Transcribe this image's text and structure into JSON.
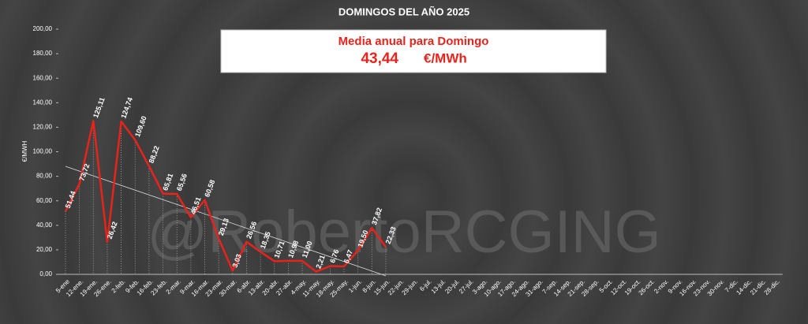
{
  "chart_data": {
    "type": "line",
    "title": "DOMINGOS DEL AÑO 2025",
    "y_label": "€/MWH",
    "watermark": "@RobertoRCGING",
    "annual_mean": {
      "label": "Media anual para Domingo",
      "value": 43.44,
      "value_label": "43,44",
      "unit": "€/MWh"
    },
    "categories": [
      "5-ene",
      "12-ene.",
      "19-ene.",
      "26-ene.",
      "2-feb.",
      "9-feb.",
      "16-feb.",
      "23-feb.",
      "2-mar.",
      "9-mar.",
      "16-mar.",
      "23-mar.",
      "30-mar.",
      "6-abr.",
      "13-abr.",
      "20-abr.",
      "27-abr.",
      "4-may.",
      "11-may.",
      "18-may.",
      "25-may.",
      "1-jun.",
      "8-jun.",
      "15-jun.",
      "22-jun.",
      "29-jun.",
      "6-jul.",
      "13-jul.",
      "20-jul.",
      "27-jul.",
      "3-ago.",
      "10-ago.",
      "17-ago.",
      "24-ago.",
      "31-ago.",
      "7-sep.",
      "14-sep.",
      "21-sep.",
      "28-sep.",
      "5-oct.",
      "12-oct.",
      "19-oct.",
      "26-oct.",
      "2-nov.",
      "9-nov.",
      "16-nov.",
      "23-nov.",
      "30-nov.",
      "7-dic.",
      "14-dic.",
      "21-dic.",
      "28-dic."
    ],
    "series": [
      {
        "color": "#e8231c",
        "values": [
          51.44,
          73.72,
          125.11,
          26.42,
          124.74,
          109.6,
          88.22,
          65.81,
          65.56,
          46.51,
          60.58,
          29.13,
          3.03,
          26.56,
          18.35,
          10.71,
          10.98,
          11.0,
          2.21,
          6.76,
          6.47,
          19.5,
          37.82,
          22.33,
          null,
          null,
          null,
          null,
          null,
          null,
          null,
          null,
          null,
          null,
          null,
          null,
          null,
          null,
          null,
          null,
          null,
          null,
          null,
          null,
          null,
          null,
          null,
          null,
          null,
          null,
          null,
          null
        ],
        "value_labels": [
          "51,44",
          "73,72",
          "125,11",
          "26,42",
          "124,74",
          "109,60",
          "88,22",
          "65,81",
          "65,56",
          "46,51",
          "60,58",
          "29,13",
          "3,03",
          "26,56",
          "18,35",
          "10,71",
          "10,98",
          "11,00",
          "2,21",
          "6,76",
          "6,47",
          "19,50",
          "37,82",
          "22,33",
          null,
          null,
          null,
          null,
          null,
          null,
          null,
          null,
          null,
          null,
          null,
          null,
          null,
          null,
          null,
          null,
          null,
          null,
          null,
          null,
          null,
          null,
          null,
          null,
          null,
          null,
          null,
          null
        ]
      }
    ],
    "trendline": true,
    "ylim": [
      0,
      200
    ],
    "yticks": [
      {
        "value": 0,
        "label": "0,00"
      },
      {
        "value": 20,
        "label": "20,00"
      },
      {
        "value": 40,
        "label": "40,00"
      },
      {
        "value": 60,
        "label": "60,00"
      },
      {
        "value": 80,
        "label": "80,00"
      },
      {
        "value": 100,
        "label": "100,00"
      },
      {
        "value": 120,
        "label": "120,00"
      },
      {
        "value": 140,
        "label": "140,00"
      },
      {
        "value": 160,
        "label": "160,00"
      },
      {
        "value": 180,
        "label": "180,00"
      },
      {
        "value": 200,
        "label": "200,00"
      }
    ]
  }
}
